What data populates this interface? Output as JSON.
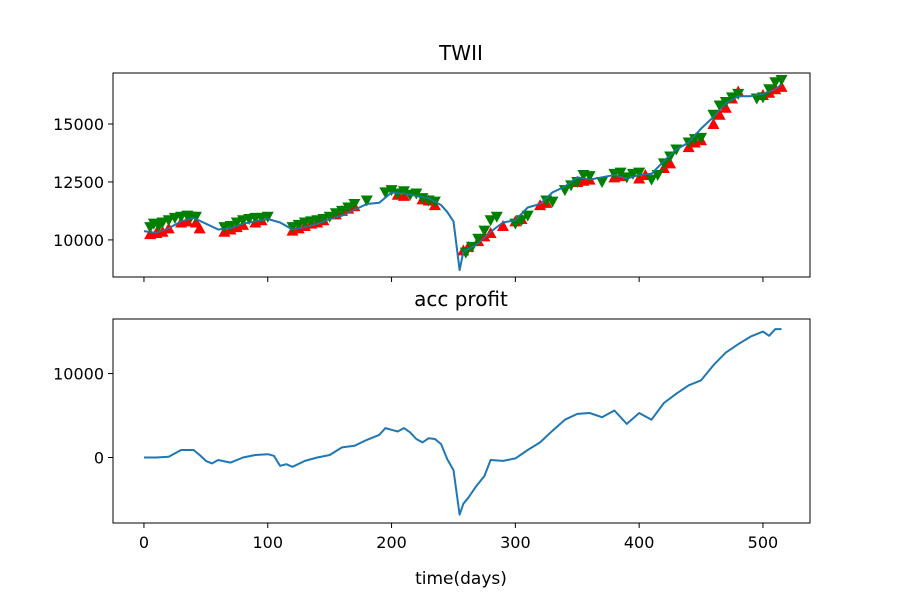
{
  "chart_data": [
    {
      "type": "line",
      "title": "TWII",
      "xlabel": "",
      "ylabel": "",
      "xlim": [
        -25,
        538
      ],
      "ylim": [
        8400,
        17200
      ],
      "x_ticks": [
        0,
        100,
        200,
        300,
        400,
        500
      ],
      "y_ticks": [
        10000,
        12500,
        15000
      ],
      "y_tick_labels": [
        "10000",
        "12500",
        "15000"
      ],
      "grid": false,
      "colors": {
        "line": "#1f77b4",
        "buy": "#ff0000",
        "sell": "#008000"
      },
      "series": [
        {
          "x": [
            0,
            10,
            20,
            30,
            40,
            50,
            60,
            70,
            80,
            90,
            100,
            110,
            120,
            130,
            140,
            150,
            160,
            170,
            180,
            190,
            200,
            210,
            220,
            230,
            240,
            245,
            250,
            255,
            258,
            262,
            270,
            280,
            290,
            300,
            310,
            320,
            330,
            340,
            350,
            360,
            370,
            380,
            390,
            400,
            410,
            420,
            430,
            440,
            450,
            460,
            470,
            480,
            490,
            500,
            510,
            515
          ],
          "y": [
            10380,
            10300,
            10500,
            10800,
            10950,
            10700,
            10450,
            10500,
            10700,
            10800,
            10900,
            10750,
            10450,
            10550,
            10700,
            10900,
            11050,
            11300,
            11550,
            11600,
            12050,
            12000,
            11900,
            11800,
            11500,
            11200,
            10800,
            8700,
            9500,
            9600,
            9850,
            10350,
            10750,
            10850,
            11400,
            11550,
            12050,
            12300,
            12700,
            12600,
            12700,
            12800,
            12650,
            12800,
            12850,
            13400,
            13900,
            14200,
            14800,
            15300,
            15900,
            16200,
            16200,
            16300,
            16500,
            16700
          ]
        }
      ],
      "buy_markers": {
        "x": [
          5,
          10,
          15,
          20,
          30,
          35,
          42,
          45,
          65,
          70,
          75,
          80,
          90,
          95,
          120,
          125,
          130,
          135,
          140,
          145,
          155,
          160,
          165,
          170,
          205,
          210,
          225,
          230,
          235,
          258,
          262,
          270,
          275,
          280,
          290,
          300,
          305,
          320,
          325,
          350,
          355,
          360,
          380,
          385,
          400,
          405,
          420,
          425,
          440,
          445,
          450,
          460,
          465,
          470,
          475,
          480,
          500,
          505,
          510,
          515
        ],
        "y": [
          10250,
          10300,
          10350,
          10500,
          10750,
          10800,
          10750,
          10500,
          10350,
          10450,
          10550,
          10650,
          10750,
          10850,
          10400,
          10500,
          10600,
          10700,
          10750,
          10850,
          11100,
          11250,
          11350,
          11450,
          11950,
          11900,
          11750,
          11700,
          11500,
          9550,
          9700,
          9950,
          10150,
          10300,
          10600,
          10800,
          10900,
          11500,
          11600,
          12500,
          12550,
          12600,
          12700,
          12750,
          12650,
          12800,
          13100,
          13300,
          14000,
          14200,
          14300,
          15000,
          15400,
          15700,
          16100,
          16400,
          16250,
          16350,
          16500,
          16600
        ]
      },
      "sell_markers": {
        "x": [
          5,
          8,
          12,
          15,
          20,
          25,
          30,
          35,
          38,
          42,
          65,
          70,
          75,
          80,
          85,
          90,
          95,
          100,
          120,
          125,
          130,
          135,
          140,
          145,
          150,
          155,
          160,
          165,
          170,
          180,
          195,
          200,
          205,
          210,
          215,
          220,
          225,
          230,
          235,
          260,
          265,
          270,
          275,
          280,
          285,
          300,
          305,
          310,
          325,
          330,
          340,
          345,
          350,
          355,
          360,
          370,
          380,
          385,
          390,
          395,
          400,
          410,
          415,
          420,
          425,
          430,
          440,
          445,
          450,
          460,
          465,
          470,
          475,
          480,
          495,
          500,
          505,
          510,
          515
        ],
        "y": [
          10550,
          10700,
          10600,
          10750,
          10850,
          10950,
          11000,
          11050,
          11000,
          11000,
          10550,
          10600,
          10750,
          10850,
          10900,
          10950,
          10950,
          11000,
          10550,
          10650,
          10750,
          10800,
          10850,
          10900,
          11000,
          11150,
          11250,
          11400,
          11550,
          11700,
          12050,
          12150,
          12000,
          12100,
          11950,
          12000,
          11800,
          11700,
          11650,
          9450,
          9700,
          10050,
          10400,
          10850,
          11000,
          10700,
          10850,
          11050,
          11700,
          11650,
          12150,
          12350,
          12500,
          12800,
          12750,
          12500,
          12850,
          12900,
          12700,
          12850,
          12900,
          12600,
          12800,
          13300,
          13600,
          13900,
          14200,
          14350,
          14400,
          15400,
          15800,
          15950,
          16150,
          16300,
          16100,
          16150,
          16500,
          16800,
          16900
        ]
      }
    },
    {
      "type": "line",
      "title": "acc profit",
      "xlabel": "time(days)",
      "ylabel": "",
      "xlim": [
        -25,
        538
      ],
      "ylim": [
        -7800,
        16500
      ],
      "x_ticks": [
        0,
        100,
        200,
        300,
        400,
        500
      ],
      "x_tick_labels": [
        "0",
        "100",
        "200",
        "300",
        "400",
        "500"
      ],
      "y_ticks": [
        0,
        10000
      ],
      "y_tick_labels": [
        "0",
        "10000"
      ],
      "grid": false,
      "colors": {
        "line": "#1f77b4"
      },
      "series": [
        {
          "x": [
            0,
            10,
            20,
            30,
            40,
            45,
            50,
            55,
            60,
            70,
            80,
            90,
            100,
            105,
            110,
            115,
            120,
            130,
            140,
            150,
            160,
            170,
            180,
            190,
            195,
            200,
            205,
            210,
            215,
            220,
            225,
            230,
            235,
            240,
            245,
            250,
            255,
            258,
            262,
            268,
            275,
            280,
            290,
            300,
            310,
            320,
            330,
            340,
            350,
            360,
            370,
            380,
            390,
            400,
            410,
            420,
            430,
            440,
            450,
            460,
            470,
            480,
            490,
            500,
            505,
            510,
            515
          ],
          "y": [
            0,
            0,
            100,
            900,
            900,
            300,
            -400,
            -700,
            -300,
            -600,
            0,
            300,
            400,
            200,
            -1000,
            -800,
            -1100,
            -400,
            0,
            300,
            1200,
            1400,
            2100,
            2700,
            3500,
            3300,
            3100,
            3500,
            3000,
            2200,
            1800,
            2300,
            2200,
            1600,
            -200,
            -1500,
            -6800,
            -5500,
            -4800,
            -3500,
            -2200,
            -300,
            -400,
            -100,
            900,
            1800,
            3200,
            4500,
            5200,
            5300,
            4800,
            5600,
            4000,
            5300,
            4500,
            6500,
            7600,
            8600,
            9200,
            11000,
            12500,
            13500,
            14400,
            15000,
            14500,
            15300,
            15300
          ]
        }
      ]
    }
  ]
}
